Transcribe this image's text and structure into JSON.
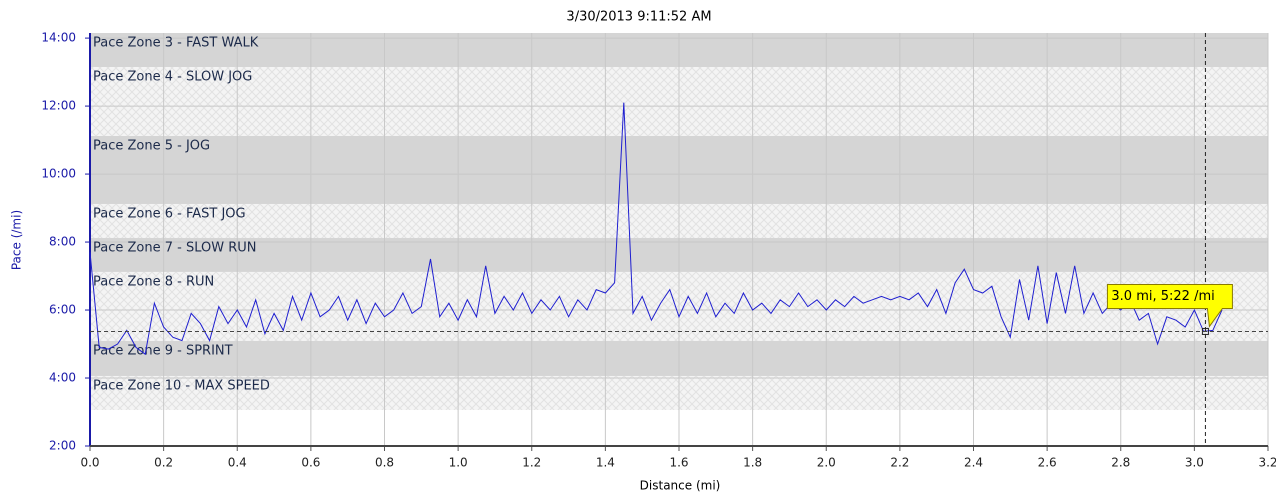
{
  "chart_data": {
    "type": "line",
    "title": "3/30/2013 9:11:52 AM",
    "x_label": "Distance (mi)",
    "y_label": "Pace (/mi)",
    "xlim": [
      0,
      3.2
    ],
    "ylim": [
      2,
      14.15
    ],
    "xticks": [
      {
        "value": 0,
        "label": "0.0"
      },
      0.2,
      0.4,
      0.6,
      0.8,
      {
        "value": 1,
        "label": "1.0"
      },
      1.2,
      1.4,
      1.6,
      1.8,
      {
        "value": 2,
        "label": "2.0"
      },
      2.2,
      2.4,
      2.6,
      2.8,
      {
        "value": 3,
        "label": "3.0"
      },
      3.2
    ],
    "yticks": [
      {
        "value": 2,
        "label": "2:00"
      },
      {
        "value": 4,
        "label": "4:00"
      },
      {
        "value": 6,
        "label": "6:00"
      },
      {
        "value": 8,
        "label": "8:00"
      },
      {
        "value": 10,
        "label": "10:00"
      },
      {
        "value": 12,
        "label": "12:00"
      },
      {
        "value": 14,
        "label": "14:00"
      }
    ],
    "grid": true,
    "zones": [
      {
        "label": "Pace Zone 3 - FAST WALK",
        "from": 13.15,
        "to": 14.15,
        "style": "solid"
      },
      {
        "label": "Pace Zone 4 - SLOW JOG",
        "from": 11.12,
        "to": 13.15,
        "style": "hatched"
      },
      {
        "label": "Pace Zone 5 - JOG",
        "from": 9.12,
        "to": 11.12,
        "style": "solid"
      },
      {
        "label": "Pace Zone 6 - FAST JOG",
        "from": 8.12,
        "to": 9.12,
        "style": "hatched"
      },
      {
        "label": "Pace Zone 7 - SLOW RUN",
        "from": 7.12,
        "to": 8.12,
        "style": "solid"
      },
      {
        "label": "Pace Zone 8 - RUN",
        "from": 5.09,
        "to": 7.12,
        "style": "hatched"
      },
      {
        "label": "Pace Zone 9 - SPRINT",
        "from": 4.06,
        "to": 5.09,
        "style": "solid"
      },
      {
        "label": "Pace Zone 10 - MAX SPEED",
        "from": 3.06,
        "to": 4.06,
        "style": "hatched"
      }
    ],
    "annotation": {
      "text": "3.0 mi, 5:22 /mi",
      "x": 3.03,
      "y": 5.37
    },
    "series": [
      {
        "name": "Pace",
        "color": "#1f1fd0",
        "x": [
          0,
          0.025,
          0.05,
          0.075,
          0.1,
          0.125,
          0.15,
          0.175,
          0.2,
          0.225,
          0.25,
          0.275,
          0.3,
          0.325,
          0.35,
          0.375,
          0.4,
          0.425,
          0.45,
          0.475,
          0.5,
          0.525,
          0.55,
          0.575,
          0.6,
          0.625,
          0.65,
          0.675,
          0.7,
          0.725,
          0.75,
          0.775,
          0.8,
          0.825,
          0.85,
          0.875,
          0.9,
          0.925,
          0.95,
          0.975,
          1.0,
          1.025,
          1.05,
          1.075,
          1.1,
          1.125,
          1.15,
          1.175,
          1.2,
          1.225,
          1.25,
          1.275,
          1.3,
          1.325,
          1.35,
          1.375,
          1.4,
          1.425,
          1.45,
          1.475,
          1.5,
          1.525,
          1.55,
          1.575,
          1.6,
          1.625,
          1.65,
          1.675,
          1.7,
          1.725,
          1.75,
          1.775,
          1.8,
          1.825,
          1.85,
          1.875,
          1.9,
          1.925,
          1.95,
          1.975,
          2.0,
          2.025,
          2.05,
          2.075,
          2.1,
          2.125,
          2.15,
          2.175,
          2.2,
          2.225,
          2.25,
          2.275,
          2.3,
          2.325,
          2.35,
          2.375,
          2.4,
          2.425,
          2.45,
          2.475,
          2.5,
          2.525,
          2.55,
          2.575,
          2.6,
          2.625,
          2.65,
          2.675,
          2.7,
          2.725,
          2.75,
          2.775,
          2.8,
          2.825,
          2.85,
          2.875,
          2.9,
          2.925,
          2.95,
          2.975,
          3.0,
          3.025,
          3.05,
          3.075
        ],
        "values": [
          7.7,
          4.9,
          4.85,
          5.0,
          5.4,
          4.9,
          4.7,
          6.2,
          5.5,
          5.2,
          5.1,
          5.9,
          5.6,
          5.1,
          6.1,
          5.6,
          6.0,
          5.5,
          6.3,
          5.3,
          5.9,
          5.4,
          6.4,
          5.7,
          6.5,
          5.8,
          6.0,
          6.4,
          5.7,
          6.3,
          5.6,
          6.2,
          5.8,
          6.0,
          6.5,
          5.9,
          6.1,
          7.5,
          5.8,
          6.2,
          5.7,
          6.3,
          5.8,
          7.3,
          5.9,
          6.4,
          6.0,
          6.5,
          5.9,
          6.3,
          6.0,
          6.4,
          5.8,
          6.3,
          6.0,
          6.6,
          6.5,
          6.8,
          12.1,
          5.9,
          6.4,
          5.7,
          6.2,
          6.6,
          5.8,
          6.4,
          5.9,
          6.5,
          5.8,
          6.2,
          5.9,
          6.5,
          6.0,
          6.2,
          5.9,
          6.3,
          6.1,
          6.5,
          6.1,
          6.3,
          6.0,
          6.3,
          6.1,
          6.4,
          6.2,
          6.3,
          6.4,
          6.3,
          6.4,
          6.3,
          6.5,
          6.1,
          6.6,
          5.9,
          6.8,
          7.2,
          6.6,
          6.5,
          6.7,
          5.8,
          5.2,
          6.9,
          5.7,
          7.3,
          5.6,
          7.1,
          5.9,
          7.3,
          5.9,
          6.5,
          5.9,
          6.2,
          6.0,
          6.3,
          5.7,
          5.9,
          5.0,
          5.8,
          5.7,
          5.5,
          6.0,
          5.37,
          5.4,
          6.0
        ]
      }
    ]
  }
}
